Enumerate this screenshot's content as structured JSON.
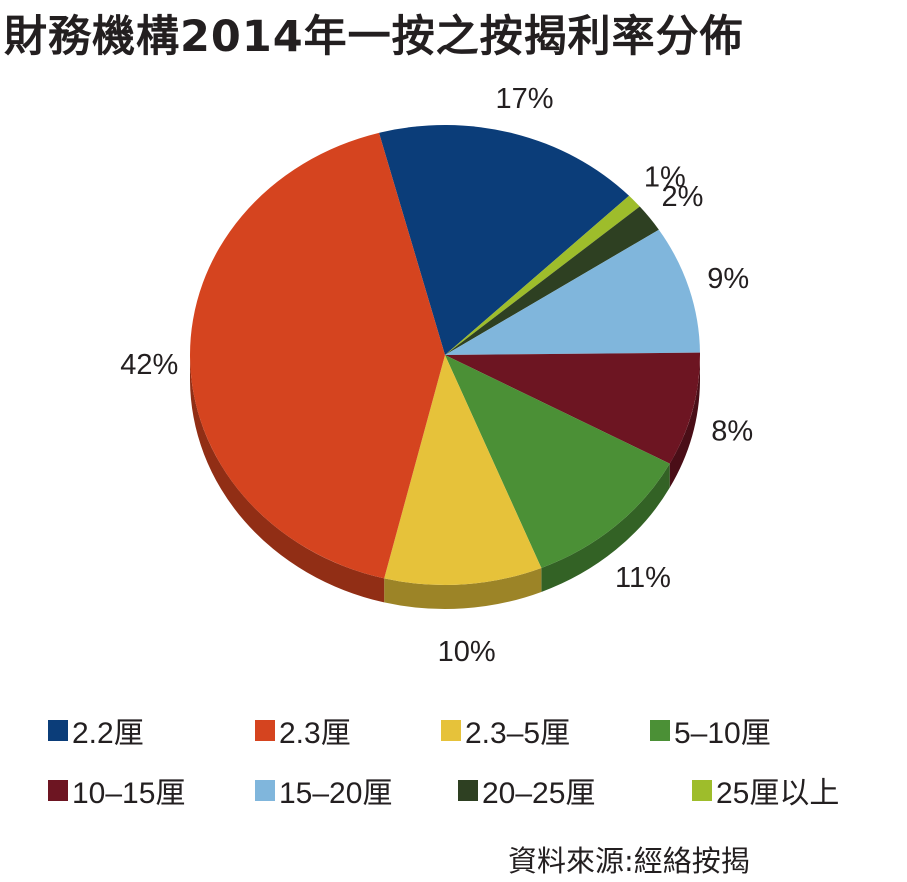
{
  "chart_data": {
    "type": "pie",
    "title": "財務機構2014年一按之按揭利率分佈",
    "source": "資料來源:經絡按揭",
    "start_angle_deg": -15,
    "slices": [
      {
        "name": "2.2厘",
        "value": 17,
        "label": "17%",
        "color": "#0b3d79"
      },
      {
        "name": "25厘以上",
        "value": 1,
        "label": "1%",
        "color": "#9ebd2b"
      },
      {
        "name": "20-25厘",
        "value": 2,
        "label": "2%",
        "color": "#2e4022"
      },
      {
        "name": "15-20厘",
        "value": 9,
        "label": "9%",
        "color": "#80b6dc"
      },
      {
        "name": "10-15厘",
        "value": 8,
        "label": "8%",
        "color": "#6d1522"
      },
      {
        "name": "5-10厘",
        "value": 11,
        "label": "11%",
        "color": "#4b9036"
      },
      {
        "name": "2.3-5厘",
        "value": 10,
        "label": "10%",
        "color": "#e6c23a"
      },
      {
        "name": "2.3厘",
        "value": 42,
        "label": "42%",
        "color": "#d5441f"
      }
    ],
    "legend": [
      {
        "label": "2.2厘",
        "color": "#0b3d79"
      },
      {
        "label": "2.3厘",
        "color": "#d5441f"
      },
      {
        "label": "2.3–5厘",
        "color": "#e6c23a"
      },
      {
        "label": "5–10厘",
        "color": "#4b9036"
      },
      {
        "label": "10–15厘",
        "color": "#6d1522"
      },
      {
        "label": "15–20厘",
        "color": "#80b6dc"
      },
      {
        "label": "20–25厘",
        "color": "#2e4022"
      },
      {
        "label": "25厘以上",
        "color": "#9ebd2b"
      }
    ]
  }
}
